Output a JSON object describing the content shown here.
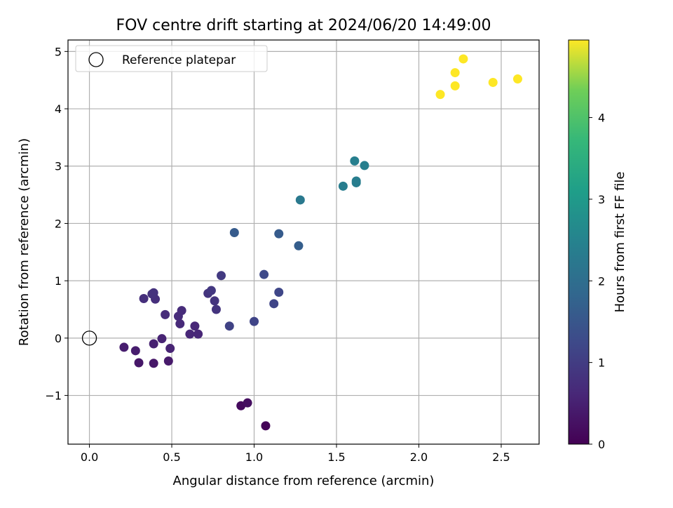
{
  "chart_data": {
    "type": "scatter",
    "title": "FOV centre drift starting at 2024/06/20 14:49:00",
    "xlabel": "Angular distance from reference (arcmin)",
    "ylabel": "Rotation from reference (arcmin)",
    "xlim": [
      -0.13,
      2.73
    ],
    "ylim": [
      -1.85,
      5.2
    ],
    "xticks": [
      0.0,
      0.5,
      1.0,
      1.5,
      2.0,
      2.5
    ],
    "xtick_labels": [
      "0.0",
      "0.5",
      "1.0",
      "1.5",
      "2.0",
      "2.5"
    ],
    "yticks": [
      -1,
      0,
      1,
      2,
      3,
      4,
      5
    ],
    "ytick_labels": [
      "−1",
      "0",
      "1",
      "2",
      "3",
      "4",
      "5"
    ],
    "grid": true,
    "legend": {
      "position": "top-left",
      "entries": [
        "Reference platepar"
      ]
    },
    "reference_point": {
      "x": 0.0,
      "y": 0.0,
      "marker": "open-circle"
    },
    "colorbar": {
      "label": "Hours from first FF file",
      "range": [
        0,
        4.95
      ],
      "ticks": [
        0,
        1,
        2,
        3,
        4
      ],
      "tick_labels": [
        "0",
        "1",
        "2",
        "3",
        "4"
      ],
      "colormap": "viridis"
    },
    "points": [
      {
        "x": 1.07,
        "y": -1.53,
        "hours": 0.05
      },
      {
        "x": 0.92,
        "y": -1.18,
        "hours": 0.15
      },
      {
        "x": 0.96,
        "y": -1.13,
        "hours": 0.2
      },
      {
        "x": 0.3,
        "y": -0.43,
        "hours": 0.35
      },
      {
        "x": 0.39,
        "y": -0.44,
        "hours": 0.35
      },
      {
        "x": 0.48,
        "y": -0.4,
        "hours": 0.4
      },
      {
        "x": 0.21,
        "y": -0.16,
        "hours": 0.45
      },
      {
        "x": 0.28,
        "y": -0.22,
        "hours": 0.45
      },
      {
        "x": 0.39,
        "y": -0.1,
        "hours": 0.5
      },
      {
        "x": 0.49,
        "y": -0.18,
        "hours": 0.55
      },
      {
        "x": 0.44,
        "y": -0.01,
        "hours": 0.55
      },
      {
        "x": 0.61,
        "y": 0.07,
        "hours": 0.6
      },
      {
        "x": 0.66,
        "y": 0.07,
        "hours": 0.6
      },
      {
        "x": 0.64,
        "y": 0.21,
        "hours": 0.6
      },
      {
        "x": 0.55,
        "y": 0.25,
        "hours": 0.65
      },
      {
        "x": 0.54,
        "y": 0.38,
        "hours": 0.7
      },
      {
        "x": 0.56,
        "y": 0.48,
        "hours": 0.7
      },
      {
        "x": 0.46,
        "y": 0.41,
        "hours": 0.7
      },
      {
        "x": 0.33,
        "y": 0.69,
        "hours": 0.75
      },
      {
        "x": 0.4,
        "y": 0.68,
        "hours": 0.75
      },
      {
        "x": 0.39,
        "y": 0.79,
        "hours": 0.8
      },
      {
        "x": 0.38,
        "y": 0.77,
        "hours": 0.8
      },
      {
        "x": 0.77,
        "y": 0.5,
        "hours": 0.85
      },
      {
        "x": 0.76,
        "y": 0.65,
        "hours": 0.85
      },
      {
        "x": 0.72,
        "y": 0.78,
        "hours": 0.85
      },
      {
        "x": 0.74,
        "y": 0.83,
        "hours": 0.9
      },
      {
        "x": 0.8,
        "y": 1.09,
        "hours": 0.95
      },
      {
        "x": 0.85,
        "y": 0.21,
        "hours": 1.1
      },
      {
        "x": 1.0,
        "y": 0.29,
        "hours": 1.15
      },
      {
        "x": 1.12,
        "y": 0.6,
        "hours": 1.15
      },
      {
        "x": 1.15,
        "y": 0.8,
        "hours": 1.2
      },
      {
        "x": 1.06,
        "y": 1.11,
        "hours": 1.25
      },
      {
        "x": 0.88,
        "y": 1.84,
        "hours": 1.6
      },
      {
        "x": 1.15,
        "y": 1.82,
        "hours": 1.6
      },
      {
        "x": 1.27,
        "y": 1.61,
        "hours": 1.65
      },
      {
        "x": 1.28,
        "y": 2.41,
        "hours": 2.25
      },
      {
        "x": 1.54,
        "y": 2.65,
        "hours": 2.35
      },
      {
        "x": 1.62,
        "y": 2.71,
        "hours": 2.35
      },
      {
        "x": 1.62,
        "y": 2.74,
        "hours": 2.35
      },
      {
        "x": 1.61,
        "y": 3.09,
        "hours": 2.4
      },
      {
        "x": 1.67,
        "y": 3.01,
        "hours": 2.4
      },
      {
        "x": 2.13,
        "y": 4.25,
        "hours": 4.95
      },
      {
        "x": 2.22,
        "y": 4.63,
        "hours": 4.95
      },
      {
        "x": 2.22,
        "y": 4.4,
        "hours": 4.95
      },
      {
        "x": 2.27,
        "y": 4.87,
        "hours": 4.95
      },
      {
        "x": 2.45,
        "y": 4.46,
        "hours": 4.95
      },
      {
        "x": 2.6,
        "y": 4.52,
        "hours": 4.95
      }
    ]
  }
}
